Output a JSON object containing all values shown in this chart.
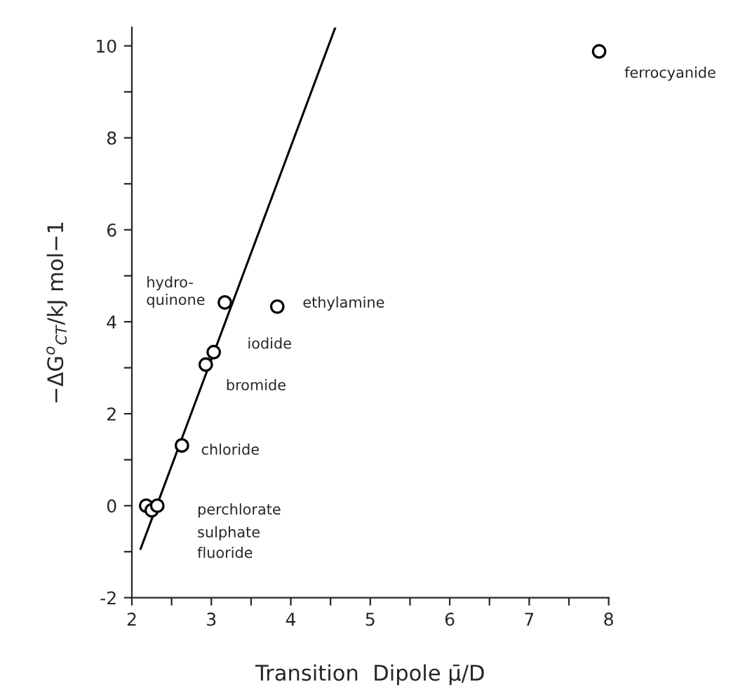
{
  "chart_data": {
    "type": "scatter",
    "xlabel": "Transition  Dipole μ̄/D",
    "ylabel": "−ΔG$^{o}$$_{CT}$/kJ mol−1",
    "xlim": [
      2,
      8
    ],
    "ylim": [
      -2,
      10.4
    ],
    "xticks": [
      2,
      {
        "value": 2.5,
        "label": null
      },
      3,
      {
        "value": 3.5,
        "label": null
      },
      4,
      {
        "value": 4.5,
        "label": null
      },
      5,
      {
        "value": 5.5,
        "label": null
      },
      6,
      {
        "value": 6.5,
        "label": null
      },
      7,
      {
        "value": 7.5,
        "label": null
      },
      8
    ],
    "yticks": [
      -2,
      {
        "value": -1,
        "label": null
      },
      0,
      {
        "value": 1,
        "label": null
      },
      2,
      {
        "value": 3,
        "label": null
      },
      4,
      {
        "value": 5,
        "label": null
      },
      6,
      {
        "value": 7,
        "label": null
      },
      8,
      {
        "value": 9,
        "label": null
      },
      10
    ],
    "grid": false,
    "legend": false,
    "series": [
      {
        "color": "#000000",
        "marker": "circle",
        "x": [
          7.88,
          3.83,
          3.17,
          3.03,
          2.93,
          2.63,
          2.18,
          2.25,
          2.32
        ],
        "values": [
          9.88,
          4.33,
          4.42,
          3.34,
          3.07,
          1.31,
          0,
          -0.1,
          0
        ]
      },
      {
        "type": "line",
        "color": "#000000",
        "marker": "none",
        "line_style": "solid",
        "x": [
          2.11,
          4.56
        ],
        "values": [
          -0.94,
          10.4
        ]
      }
    ],
    "annotations": [
      "ferrocyanide",
      "ethylamine",
      "hydro-\nquinone",
      "iodide",
      "bromide",
      "chloride",
      "perchlorate",
      "sulphate",
      "fluoride"
    ]
  }
}
